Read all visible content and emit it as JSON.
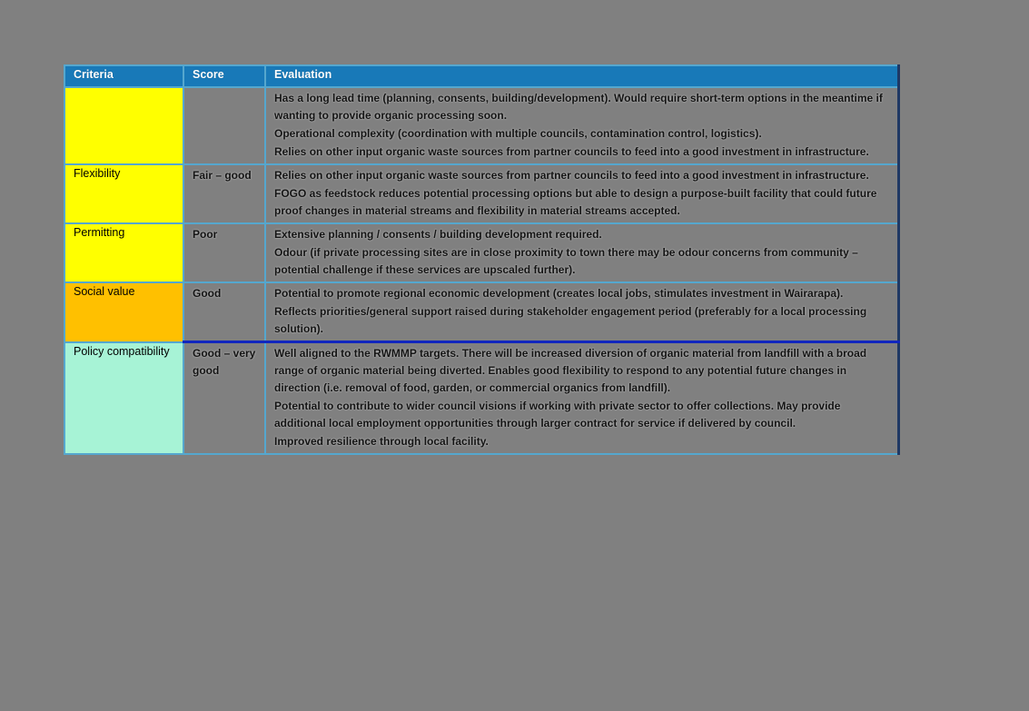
{
  "page": {
    "background_color": "#808080"
  },
  "table": {
    "headers": [
      "Criteria",
      "Score",
      "Evaluation"
    ],
    "rows": [
      {
        "criteria": "",
        "criteria_color": "#FFFF00",
        "score": "",
        "evaluation": [
          "Has a long lead time (planning, consents, building/development). Would require short-term options in the meantime if wanting to provide organic processing soon.",
          "Operational complexity (coordination with multiple councils, contamination control, logistics).",
          "Relies on other input organic waste sources from partner councils to feed into a good investment in infrastructure."
        ]
      },
      {
        "criteria": "Flexibility",
        "criteria_color": "#FFFF00",
        "score": "Fair – good",
        "evaluation": [
          "Relies on other input organic waste sources from partner councils to feed into a good investment in infrastructure.",
          "FOGO as feedstock reduces potential processing options but able to design a purpose-built facility that could future proof changes in material streams and flexibility in material streams accepted."
        ]
      },
      {
        "criteria": "Permitting",
        "criteria_color": "#FFFF00",
        "score": "Poor",
        "evaluation": [
          "Extensive planning / consents / building development required.",
          "Odour (if private processing sites are in close proximity to town there may be odour concerns from community – potential challenge if these services are upscaled further)."
        ]
      },
      {
        "criteria": "Social value",
        "criteria_color": "#FFC000",
        "score": "Good",
        "evaluation": [
          "Potential to promote regional economic development (creates local jobs, stimulates investment in Wairarapa).",
          "Reflects priorities/general support raised during stakeholder engagement period (preferably for a local processing solution)."
        ]
      },
      {
        "criteria": "Policy compatibility",
        "criteria_color": "#A7F3D6",
        "score": "Good – very good",
        "evaluation": [
          "Well aligned to the RWMMP targets. There will be increased diversion of organic material from landfill with a broad range of organic material being diverted. Enables good flexibility to respond to any potential future changes in direction (i.e. removal of food, garden, or commercial organics from landfill).",
          "Potential to contribute to wider council visions if working with private sector to offer collections. May provide additional local employment opportunities through larger contract for service if delivered by council.",
          "Improved resilience through local facility."
        ]
      }
    ],
    "colors": {
      "header_background": "#1879B8",
      "header_text": "#FFFFFF",
      "border_light_blue": "#55A7CE",
      "border_dark_navy_right": "#1F3864",
      "separator_dark_blue": "#1126BE",
      "criteria_yellow": "#FFFF00",
      "criteria_orange": "#FFC000",
      "criteria_mint": "#A7F3D6",
      "page_gray": "#808080"
    }
  }
}
